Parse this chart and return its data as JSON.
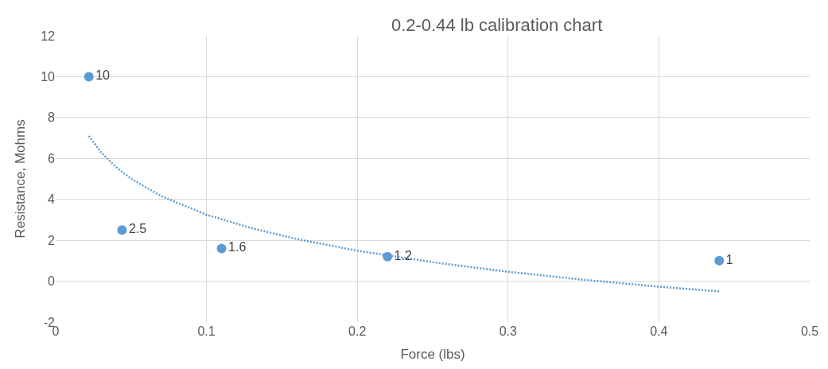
{
  "chart_data": {
    "type": "scatter",
    "title": "0.2-0.44 lb calibration chart",
    "xlabel": "Force (lbs)",
    "ylabel": "Resistance, Mohms",
    "series": [
      {
        "color": "#5b9bd5",
        "x": [
          0.022,
          0.044,
          0.11,
          0.22,
          0.44
        ],
        "values": [
          10,
          2.5,
          1.6,
          1.2,
          1
        ],
        "value_labels": [
          "10",
          "2.5",
          "1.6",
          "1.2",
          "1"
        ],
        "marker": "circle"
      },
      {
        "type": "line",
        "color": "#5b9bd5",
        "line_style": "dotted",
        "marker": "none",
        "x": [
          0.022,
          0.03,
          0.04,
          0.05,
          0.07,
          0.1,
          0.13,
          0.16,
          0.2,
          0.25,
          0.3,
          0.35,
          0.4,
          0.44
        ],
        "values": [
          7.1,
          6.31,
          5.58,
          5.01,
          4.16,
          3.25,
          2.59,
          2.06,
          1.49,
          0.93,
          0.46,
          0.07,
          -0.27,
          -0.5
        ]
      }
    ],
    "xlim": [
      0,
      0.5
    ],
    "xticks": [
      0,
      0.1,
      0.2,
      0.3,
      0.4,
      0.5
    ],
    "ylim": [
      -2,
      12
    ],
    "yticks": [
      -2,
      0,
      2,
      4,
      6,
      8,
      10,
      12
    ],
    "grid": true
  }
}
